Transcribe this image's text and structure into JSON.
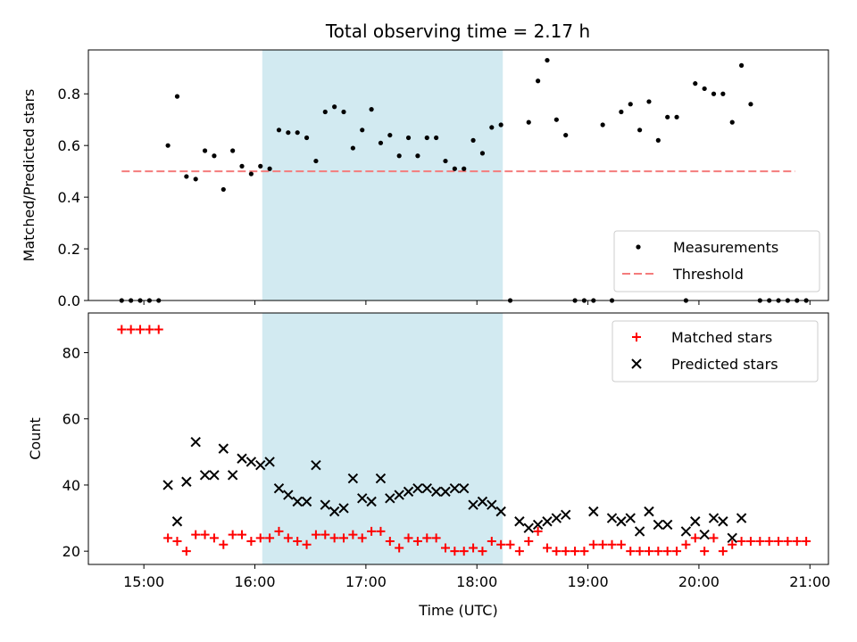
{
  "title": "Total observing time = 2.17 h",
  "colors": {
    "measurement": "#000000",
    "threshold": "#f47c7c",
    "matched": "#ff0000",
    "predicted": "#000000",
    "span": "#add8e6"
  },
  "chart_data": [
    {
      "type": "scatter",
      "ylabel": "Matched/Predicted stars",
      "xlim": [
        "14:30",
        "21:10"
      ],
      "ylim": [
        0,
        0.97
      ],
      "yticks": [
        "0.0",
        "0.2",
        "0.4",
        "0.6",
        "0.8"
      ],
      "shaded_span": [
        "16:04",
        "18:14"
      ],
      "threshold": {
        "value": 0.5,
        "x_range": [
          "14:48",
          "20:52"
        ]
      },
      "legend": [
        "Measurements",
        "Threshold"
      ],
      "legend_position": "lower-right",
      "series": [
        {
          "name": "Measurements",
          "points": [
            [
              "14:48",
              0
            ],
            [
              "14:53",
              0
            ],
            [
              "14:58",
              0
            ],
            [
              "15:03",
              0
            ],
            [
              "15:08",
              0
            ],
            [
              "15:13",
              0.6
            ],
            [
              "15:18",
              0.79
            ],
            [
              "15:23",
              0.48
            ],
            [
              "15:28",
              0.47
            ],
            [
              "15:33",
              0.58
            ],
            [
              "15:38",
              0.56
            ],
            [
              "15:43",
              0.43
            ],
            [
              "15:48",
              0.58
            ],
            [
              "15:53",
              0.52
            ],
            [
              "15:58",
              0.49
            ],
            [
              "16:03",
              0.52
            ],
            [
              "16:08",
              0.51
            ],
            [
              "16:13",
              0.66
            ],
            [
              "16:18",
              0.65
            ],
            [
              "16:23",
              0.65
            ],
            [
              "16:28",
              0.63
            ],
            [
              "16:33",
              0.54
            ],
            [
              "16:38",
              0.73
            ],
            [
              "16:43",
              0.75
            ],
            [
              "16:48",
              0.73
            ],
            [
              "16:53",
              0.59
            ],
            [
              "16:58",
              0.66
            ],
            [
              "17:03",
              0.74
            ],
            [
              "17:08",
              0.61
            ],
            [
              "17:13",
              0.64
            ],
            [
              "17:18",
              0.56
            ],
            [
              "17:23",
              0.63
            ],
            [
              "17:28",
              0.56
            ],
            [
              "17:33",
              0.63
            ],
            [
              "17:38",
              0.63
            ],
            [
              "17:43",
              0.54
            ],
            [
              "17:48",
              0.51
            ],
            [
              "17:53",
              0.51
            ],
            [
              "17:58",
              0.62
            ],
            [
              "18:03",
              0.57
            ],
            [
              "18:08",
              0.67
            ],
            [
              "18:13",
              0.68
            ],
            [
              "18:18",
              0
            ],
            [
              "18:28",
              0.69
            ],
            [
              "18:33",
              0.85
            ],
            [
              "18:38",
              0.93
            ],
            [
              "18:43",
              0.7
            ],
            [
              "18:48",
              0.64
            ],
            [
              "18:53",
              0
            ],
            [
              "18:58",
              0
            ],
            [
              "19:03",
              0
            ],
            [
              "19:08",
              0.68
            ],
            [
              "19:13",
              0
            ],
            [
              "19:18",
              0.73
            ],
            [
              "19:23",
              0.76
            ],
            [
              "19:28",
              0.66
            ],
            [
              "19:33",
              0.77
            ],
            [
              "19:38",
              0.62
            ],
            [
              "19:43",
              0.71
            ],
            [
              "19:48",
              0.71
            ],
            [
              "19:53",
              0
            ],
            [
              "19:58",
              0.84
            ],
            [
              "20:03",
              0.82
            ],
            [
              "20:08",
              0.8
            ],
            [
              "20:13",
              0.8
            ],
            [
              "20:18",
              0.69
            ],
            [
              "20:23",
              0.91
            ],
            [
              "20:28",
              0.76
            ],
            [
              "20:33",
              0
            ],
            [
              "20:38",
              0
            ],
            [
              "20:43",
              0
            ],
            [
              "20:48",
              0
            ],
            [
              "20:53",
              0
            ],
            [
              "20:58",
              0
            ]
          ]
        },
        {
          "name": "Threshold",
          "y": 0.5
        }
      ]
    },
    {
      "type": "scatter",
      "xlabel": "Time (UTC)",
      "ylabel": "Count",
      "xlim": [
        "14:30",
        "21:10"
      ],
      "ylim": [
        16,
        92
      ],
      "yticks": [
        "20",
        "40",
        "60",
        "80"
      ],
      "xticks": [
        "15:00",
        "16:00",
        "17:00",
        "18:00",
        "19:00",
        "20:00",
        "21:00"
      ],
      "shaded_span": [
        "16:04",
        "18:14"
      ],
      "legend": [
        "Matched stars",
        "Predicted stars"
      ],
      "legend_position": "upper-right",
      "series": [
        {
          "name": "Matched stars",
          "marker": "+",
          "points": [
            [
              "14:48",
              87
            ],
            [
              "14:53",
              87
            ],
            [
              "14:58",
              87
            ],
            [
              "15:03",
              87
            ],
            [
              "15:08",
              87
            ],
            [
              "15:13",
              24
            ],
            [
              "15:18",
              23
            ],
            [
              "15:23",
              20
            ],
            [
              "15:28",
              25
            ],
            [
              "15:33",
              25
            ],
            [
              "15:38",
              24
            ],
            [
              "15:43",
              22
            ],
            [
              "15:48",
              25
            ],
            [
              "15:53",
              25
            ],
            [
              "15:58",
              23
            ],
            [
              "16:03",
              24
            ],
            [
              "16:08",
              24
            ],
            [
              "16:13",
              26
            ],
            [
              "16:18",
              24
            ],
            [
              "16:23",
              23
            ],
            [
              "16:28",
              22
            ],
            [
              "16:33",
              25
            ],
            [
              "16:38",
              25
            ],
            [
              "16:43",
              24
            ],
            [
              "16:48",
              24
            ],
            [
              "16:53",
              25
            ],
            [
              "16:58",
              24
            ],
            [
              "17:03",
              26
            ],
            [
              "17:08",
              26
            ],
            [
              "17:13",
              23
            ],
            [
              "17:18",
              21
            ],
            [
              "17:23",
              24
            ],
            [
              "17:28",
              23
            ],
            [
              "17:33",
              24
            ],
            [
              "17:38",
              24
            ],
            [
              "17:43",
              21
            ],
            [
              "17:48",
              20
            ],
            [
              "17:53",
              20
            ],
            [
              "17:58",
              21
            ],
            [
              "18:03",
              20
            ],
            [
              "18:08",
              23
            ],
            [
              "18:13",
              22
            ],
            [
              "18:18",
              22
            ],
            [
              "18:23",
              20
            ],
            [
              "18:28",
              23
            ],
            [
              "18:33",
              26
            ],
            [
              "18:38",
              21
            ],
            [
              "18:43",
              20
            ],
            [
              "18:48",
              20
            ],
            [
              "18:53",
              20
            ],
            [
              "18:58",
              20
            ],
            [
              "19:03",
              22
            ],
            [
              "19:08",
              22
            ],
            [
              "19:13",
              22
            ],
            [
              "19:18",
              22
            ],
            [
              "19:23",
              20
            ],
            [
              "19:28",
              20
            ],
            [
              "19:33",
              20
            ],
            [
              "19:38",
              20
            ],
            [
              "19:43",
              20
            ],
            [
              "19:48",
              20
            ],
            [
              "19:53",
              22
            ],
            [
              "19:58",
              24
            ],
            [
              "20:03",
              20
            ],
            [
              "20:08",
              24
            ],
            [
              "20:13",
              20
            ],
            [
              "20:18",
              22
            ],
            [
              "20:23",
              23
            ],
            [
              "20:28",
              23
            ],
            [
              "20:33",
              23
            ],
            [
              "20:38",
              23
            ],
            [
              "20:43",
              23
            ],
            [
              "20:48",
              23
            ],
            [
              "20:53",
              23
            ],
            [
              "20:58",
              23
            ]
          ]
        },
        {
          "name": "Predicted stars",
          "marker": "x",
          "points": [
            [
              "15:13",
              40
            ],
            [
              "15:18",
              29
            ],
            [
              "15:23",
              41
            ],
            [
              "15:28",
              53
            ],
            [
              "15:33",
              43
            ],
            [
              "15:38",
              43
            ],
            [
              "15:43",
              51
            ],
            [
              "15:48",
              43
            ],
            [
              "15:53",
              48
            ],
            [
              "15:58",
              47
            ],
            [
              "16:03",
              46
            ],
            [
              "16:08",
              47
            ],
            [
              "16:13",
              39
            ],
            [
              "16:18",
              37
            ],
            [
              "16:23",
              35
            ],
            [
              "16:28",
              35
            ],
            [
              "16:33",
              46
            ],
            [
              "16:38",
              34
            ],
            [
              "16:43",
              32
            ],
            [
              "16:48",
              33
            ],
            [
              "16:53",
              42
            ],
            [
              "16:58",
              36
            ],
            [
              "17:03",
              35
            ],
            [
              "17:08",
              42
            ],
            [
              "17:13",
              36
            ],
            [
              "17:18",
              37
            ],
            [
              "17:23",
              38
            ],
            [
              "17:28",
              39
            ],
            [
              "17:33",
              39
            ],
            [
              "17:38",
              38
            ],
            [
              "17:43",
              38
            ],
            [
              "17:48",
              39
            ],
            [
              "17:53",
              39
            ],
            [
              "17:58",
              34
            ],
            [
              "18:03",
              35
            ],
            [
              "18:08",
              34
            ],
            [
              "18:13",
              32
            ],
            [
              "18:23",
              29
            ],
            [
              "18:28",
              27
            ],
            [
              "18:33",
              28
            ],
            [
              "18:38",
              29
            ],
            [
              "18:43",
              30
            ],
            [
              "18:48",
              31
            ],
            [
              "19:03",
              32
            ],
            [
              "19:13",
              30
            ],
            [
              "19:18",
              29
            ],
            [
              "19:23",
              30
            ],
            [
              "19:28",
              26
            ],
            [
              "19:33",
              32
            ],
            [
              "19:38",
              28
            ],
            [
              "19:43",
              28
            ],
            [
              "19:53",
              26
            ],
            [
              "19:58",
              29
            ],
            [
              "20:03",
              25
            ],
            [
              "20:08",
              30
            ],
            [
              "20:13",
              29
            ],
            [
              "20:18",
              24
            ],
            [
              "20:23",
              30
            ]
          ]
        }
      ]
    }
  ]
}
